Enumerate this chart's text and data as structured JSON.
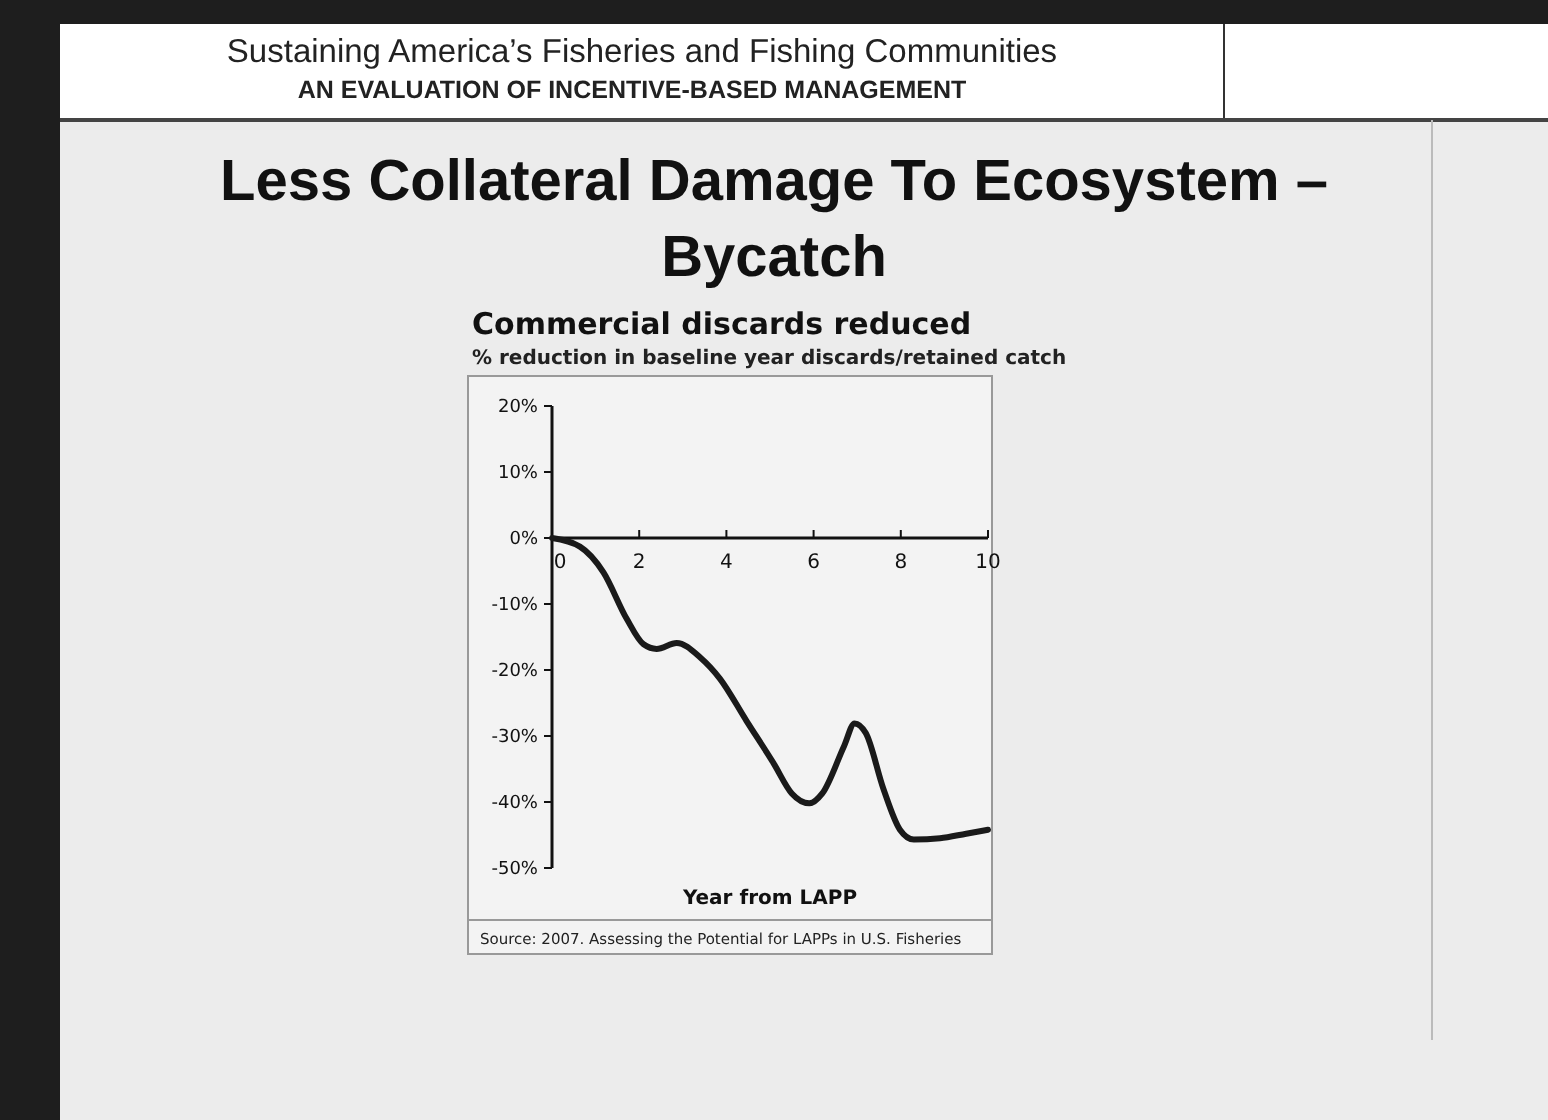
{
  "chart_data": {
    "type": "line",
    "title": "Commercial discards reduced",
    "subtitle": "% reduction in baseline year discards/retained catch",
    "xlabel": "Year from LAPP",
    "annotations": [
      "Sustaining America’s Fisheries and Fishing Communities",
      "AN EVALUATION OF INCENTIVE-BASED MANAGEMENT",
      "Less Collateral Damage To Ecosystem –",
      "Bycatch",
      "Source: 2007. Assessing the Potential for LAPPs in U.S. Fisheries"
    ],
    "x": [
      0,
      0.64,
      1.18,
      1.71,
      2.1,
      2.4,
      2.86,
      3.4,
      3.85,
      4.46,
      5.08,
      5.5,
      5.9,
      6.2,
      6.7,
      6.94,
      7.2,
      7.6,
      7.98,
      8.3,
      8.9,
      9.5,
      10
    ],
    "series": [
      {
        "color": "#1a1a1a",
        "values": [
          0,
          -1.3,
          -5.2,
          -12.2,
          -16.1,
          -16.8,
          -15.9,
          -18.1,
          -21.3,
          -27.7,
          -34.1,
          -38.7,
          -40.2,
          -38.7,
          -31.5,
          -28.1,
          -29.6,
          -38,
          -44.2,
          -45.7,
          -45.5,
          -44.8,
          -44.2
        ]
      }
    ],
    "xlim": [
      0,
      10
    ],
    "xticks": [
      0,
      2,
      4,
      6,
      8,
      10
    ],
    "ylim": [
      -50,
      20
    ],
    "yticks": [
      {
        "value": 20,
        "label": "20%"
      },
      {
        "value": 10,
        "label": "10%"
      },
      {
        "value": 0,
        "label": "0%"
      },
      {
        "value": -10,
        "label": "-10%"
      },
      {
        "value": -20,
        "label": "-20%"
      },
      {
        "value": -30,
        "label": "-30%"
      },
      {
        "value": -40,
        "label": "-40%"
      },
      {
        "value": -50,
        "label": "-50%"
      }
    ],
    "marker": "none",
    "line_style": "solid"
  }
}
